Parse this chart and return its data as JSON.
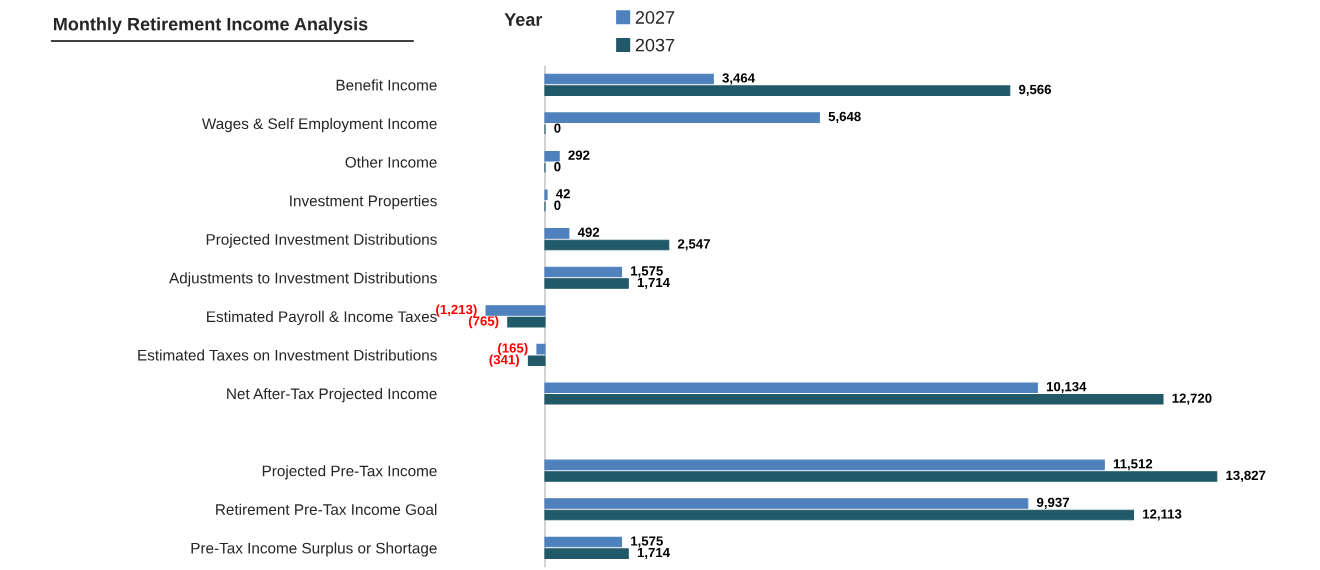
{
  "chart_data": {
    "type": "bar",
    "orientation": "horizontal",
    "title": "Monthly Retirement Income Analysis",
    "legend_title": "Year",
    "legend": "top",
    "categories": [
      "Benefit Income",
      "Wages & Self Employment Income",
      "Other Income",
      "Investment Properties",
      "Projected Investment Distributions",
      "Adjustments to Investment Distributions",
      "Estimated Payroll & Income Taxes",
      "Estimated Taxes on Investment Distributions",
      "Net After-Tax Projected Income",
      null,
      "Projected Pre-Tax Income",
      "Retirement Pre-Tax Income Goal",
      "Pre-Tax Income Surplus or Shortage"
    ],
    "series": [
      {
        "name": "2027",
        "color": "#4f81bd",
        "values": [
          3464,
          5648,
          292,
          42,
          492,
          1575,
          -1213,
          -165,
          10134,
          null,
          11512,
          9937,
          1575
        ],
        "value_labels": [
          "3,464",
          "5,648",
          "292",
          "42",
          "492",
          "1,575",
          "(1,213)",
          "(165)",
          "10,134",
          null,
          "11,512",
          "9,937",
          "1,575"
        ]
      },
      {
        "name": "2037",
        "color": "#215968",
        "values": [
          9566,
          0,
          0,
          0,
          2547,
          1714,
          -765,
          -341,
          12720,
          null,
          13827,
          12113,
          1714
        ],
        "value_labels": [
          "9,566",
          "0",
          "0",
          "0",
          "2,547",
          "1,714",
          "(765)",
          "(341)",
          "12,720",
          null,
          "13,827",
          "12,113",
          "1,714"
        ]
      }
    ],
    "tick_labels": "y",
    "grid": false
  }
}
